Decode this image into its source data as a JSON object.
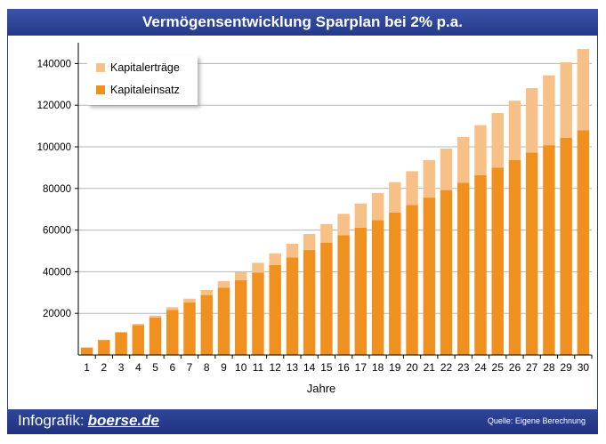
{
  "header": {
    "title": "Vermögensentwicklung Sparplan bei 2% p.a."
  },
  "footer": {
    "brand_prefix": "Infografik:",
    "brand_name": "boerse.de",
    "source": "Quelle: Eigene Berechnung"
  },
  "chart_data": {
    "type": "bar",
    "stacked": true,
    "title": "Vermögensentwicklung Sparplan bei 2% p.a.",
    "xlabel": "Jahre",
    "ylabel": "",
    "ylim": [
      0,
      150000
    ],
    "yticks": [
      20000,
      40000,
      60000,
      80000,
      100000,
      120000,
      140000
    ],
    "grid": true,
    "legend_position": "top-left",
    "categories": [
      "1",
      "2",
      "3",
      "4",
      "5",
      "6",
      "7",
      "8",
      "9",
      "10",
      "11",
      "12",
      "13",
      "14",
      "15",
      "16",
      "17",
      "18",
      "19",
      "20",
      "21",
      "22",
      "23",
      "24",
      "25",
      "26",
      "27",
      "28",
      "29",
      "30"
    ],
    "series": [
      {
        "name": "Kapitaleinsatz",
        "color": "#f0901e",
        "values": [
          3600,
          7200,
          10800,
          14400,
          18000,
          21600,
          25200,
          28800,
          32400,
          36000,
          39600,
          43200,
          46800,
          50400,
          54000,
          57600,
          61200,
          64800,
          68400,
          72000,
          75600,
          79200,
          82800,
          86400,
          90000,
          93600,
          97200,
          100800,
          104400,
          108000
        ]
      },
      {
        "name": "Kapitalerträge",
        "color": "#f7c086",
        "values": [
          36,
          145,
          330,
          590,
          930,
          1350,
          1850,
          2430,
          3100,
          3850,
          4690,
          5610,
          6620,
          7720,
          8910,
          10190,
          11570,
          13040,
          14610,
          16280,
          18050,
          19930,
          21920,
          24010,
          26220,
          28540,
          30970,
          33520,
          36190,
          38980
        ]
      }
    ]
  }
}
